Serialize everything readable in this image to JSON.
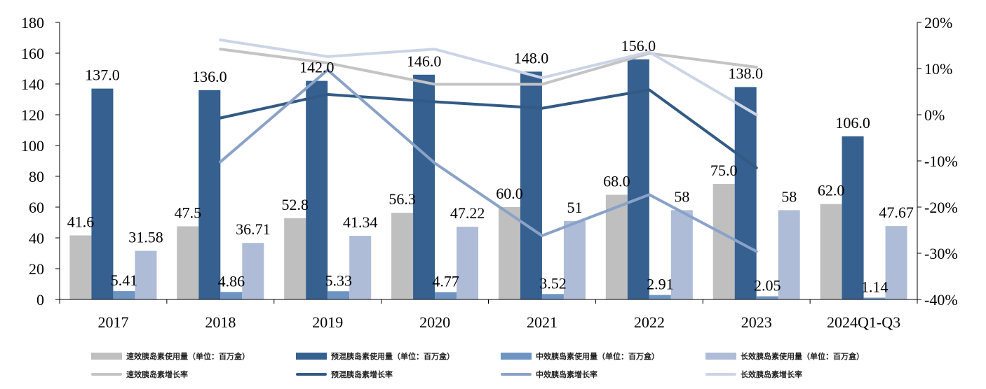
{
  "chart_data": {
    "type": "bar",
    "categories": [
      "2017",
      "2018",
      "2019",
      "2020",
      "2021",
      "2022",
      "2023",
      "2024Q1-Q3"
    ],
    "ylim": [
      0,
      180
    ],
    "yticks": [
      0,
      20,
      40,
      60,
      80,
      100,
      120,
      140,
      160,
      180
    ],
    "y2lim": [
      -40,
      20
    ],
    "y2ticks": [
      "-40%",
      "-30%",
      "-20%",
      "-10%",
      "0%",
      "10%",
      "20%"
    ],
    "y2tick_values": [
      -40,
      -30,
      -20,
      -10,
      0,
      10,
      20
    ],
    "bar_series": [
      {
        "name": "速效胰岛素使用量（单位：百万盒）",
        "color": "#bfbfbf",
        "values": [
          41.6,
          47.5,
          52.8,
          56.3,
          60.0,
          68.0,
          75.0,
          62.0
        ],
        "labels": [
          "41.6",
          "47.5",
          "52.8",
          "56.3",
          "60.0",
          "68.0",
          "75.0",
          "62.0"
        ]
      },
      {
        "name": "预混胰岛素使用量（单位：百万盒）",
        "color": "#35608f",
        "values": [
          137.0,
          136.0,
          142.0,
          146.0,
          148.0,
          156.0,
          138.0,
          106.0
        ],
        "labels": [
          "137.0",
          "136.0",
          "142.0",
          "146.0",
          "148.0",
          "156.0",
          "138.0",
          "106.0"
        ]
      },
      {
        "name": "中效胰岛素使用量（单位：百万盒）",
        "color": "#6e94c2",
        "values": [
          5.41,
          4.86,
          5.33,
          4.77,
          3.52,
          2.91,
          2.05,
          1.14
        ],
        "labels": [
          "5.41",
          "4.86",
          "5.33",
          "4.77",
          "3.52",
          "2.91",
          "2.05",
          "1.14"
        ]
      },
      {
        "name": "长效胰岛素使用量（单位：百万盒）",
        "color": "#aebcd8",
        "values": [
          31.58,
          36.71,
          41.34,
          47.22,
          51,
          58,
          58,
          47.67
        ],
        "labels": [
          "31.58",
          "36.71",
          "41.34",
          "47.22",
          "51",
          "58",
          "58",
          "47.67"
        ]
      }
    ],
    "line_series": [
      {
        "name": "速效胰岛素增长率",
        "color": "#c4c4c4",
        "values": [
          null,
          14.2,
          11.2,
          6.6,
          6.6,
          13.3,
          10.3,
          null
        ]
      },
      {
        "name": "预混胰岛素增长率",
        "color": "#325a85",
        "values": [
          null,
          -0.7,
          4.4,
          2.8,
          1.4,
          5.4,
          -11.5,
          null
        ]
      },
      {
        "name": "中效胰岛素增长率",
        "color": "#8aa2c8",
        "values": [
          null,
          -10.2,
          9.7,
          -10.5,
          -26.2,
          -17.3,
          -29.6,
          null
        ]
      },
      {
        "name": "长效胰岛素增长率",
        "color": "#ccd5e6",
        "values": [
          null,
          16.2,
          12.6,
          14.2,
          8.0,
          13.6,
          0.0,
          null
        ]
      }
    ]
  }
}
